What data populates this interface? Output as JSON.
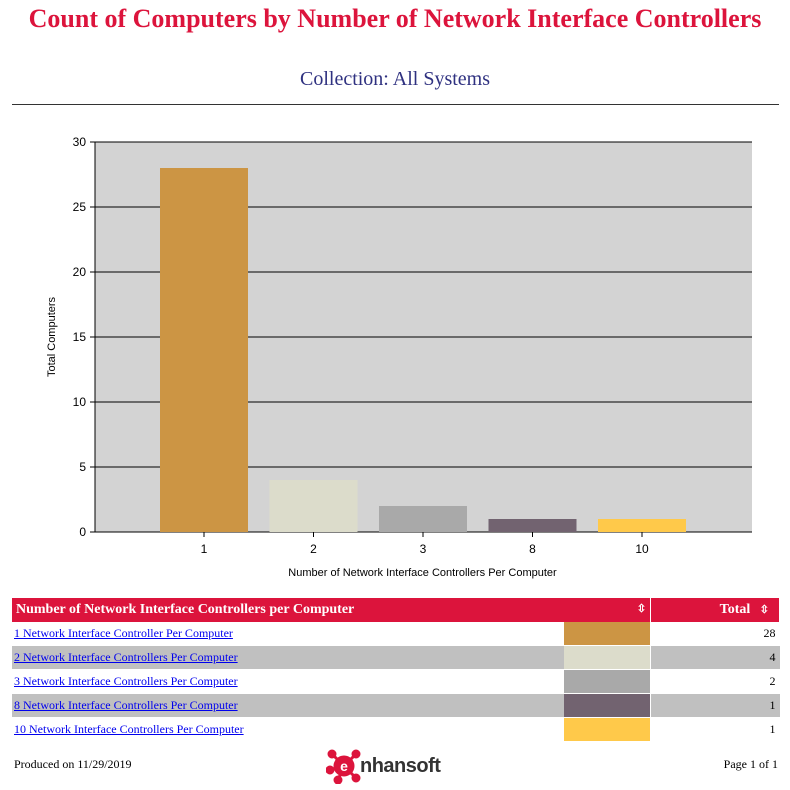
{
  "header": {
    "title": "Count of Computers by Number of Network Interface Controllers",
    "subtitle": "Collection: All Systems"
  },
  "chart_data": {
    "type": "bar",
    "categories": [
      "1",
      "2",
      "3",
      "8",
      "10"
    ],
    "values": [
      28,
      4,
      2,
      1,
      1
    ],
    "colors": [
      "#cc9544",
      "#dcdccb",
      "#a9a9a9",
      "#726370",
      "#ffc94a"
    ],
    "xlabel": "Number of Network Interface Controllers Per Computer",
    "ylabel": "Total Computers",
    "ylim": [
      0,
      30
    ],
    "yticks": [
      0,
      5,
      10,
      15,
      20,
      25,
      30
    ],
    "grid": true,
    "background": "#d3d3d3"
  },
  "table": {
    "headers": {
      "name": "Number of Network Interface Controllers per Computer",
      "total": "Total"
    },
    "sort_icon": "sort-arrows-icon",
    "rows": [
      {
        "label": "1 Network Interface Controller Per Computer",
        "total": "28",
        "color": "#cc9544"
      },
      {
        "label": "2 Network Interface Controllers Per Computer",
        "total": "4",
        "color": "#dcdccb"
      },
      {
        "label": "3 Network Interface Controllers Per Computer",
        "total": "2",
        "color": "#a9a9a9"
      },
      {
        "label": "8 Network Interface Controllers Per Computer",
        "total": "1",
        "color": "#726370"
      },
      {
        "label": "10 Network Interface Controllers Per Computer",
        "total": "1",
        "color": "#ffc94a"
      }
    ]
  },
  "footer": {
    "produced": "Produced on 11/29/2019",
    "page": "Page 1 of 1",
    "logo_text": "nhansoft",
    "logo_icon": "enhansoft-logo-icon"
  },
  "brand_color": "#dc143c"
}
